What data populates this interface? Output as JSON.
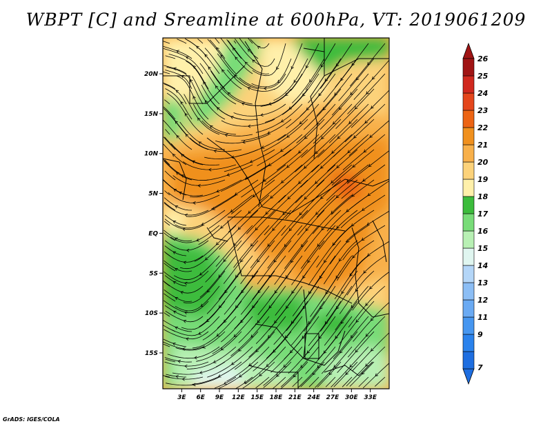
{
  "title": "WBPT [C] and Sreamline at 600hPa, VT: 2019061209",
  "credit": "GrADS: IGES/COLA",
  "map": {
    "lon_range": [
      0,
      36
    ],
    "lat_range": [
      -19.5,
      24.5
    ],
    "lat_ticks": [
      {
        "value": 20,
        "label": "20N"
      },
      {
        "value": 15,
        "label": "15N"
      },
      {
        "value": 10,
        "label": "10N"
      },
      {
        "value": 5,
        "label": "5N"
      },
      {
        "value": 0,
        "label": "EQ"
      },
      {
        "value": -5,
        "label": "5S"
      },
      {
        "value": -10,
        "label": "10S"
      },
      {
        "value": -15,
        "label": "15S"
      }
    ],
    "lon_ticks": [
      {
        "value": 3,
        "label": "3E"
      },
      {
        "value": 6,
        "label": "6E"
      },
      {
        "value": 9,
        "label": "9E"
      },
      {
        "value": 12,
        "label": "12E"
      },
      {
        "value": 15,
        "label": "15E"
      },
      {
        "value": 18,
        "label": "18E"
      },
      {
        "value": 21,
        "label": "21E"
      },
      {
        "value": 24,
        "label": "24E"
      },
      {
        "value": 27,
        "label": "27E"
      },
      {
        "value": 30,
        "label": "30E"
      },
      {
        "value": 33,
        "label": "33E"
      }
    ]
  },
  "colorbar": {
    "levels": [
      {
        "label": "7",
        "color": "#1e6ee0"
      },
      {
        "label": "9",
        "color": "#2a82ec"
      },
      {
        "label": "11",
        "color": "#4696f0"
      },
      {
        "label": "12",
        "color": "#6aaaf3"
      },
      {
        "label": "13",
        "color": "#8cbef5"
      },
      {
        "label": "14",
        "color": "#b4d6f8"
      },
      {
        "label": "15",
        "color": "#e0f6f0"
      },
      {
        "label": "16",
        "color": "#b8f0b4"
      },
      {
        "label": "17",
        "color": "#78dc78"
      },
      {
        "label": "18",
        "color": "#3cbc3c"
      },
      {
        "label": "19",
        "color": "#fff0aa"
      },
      {
        "label": "20",
        "color": "#fcd27a"
      },
      {
        "label": "21",
        "color": "#f8b04a"
      },
      {
        "label": "22",
        "color": "#f0901e"
      },
      {
        "label": "23",
        "color": "#ec6414"
      },
      {
        "label": "24",
        "color": "#e4461c"
      },
      {
        "label": "25",
        "color": "#d0281e"
      },
      {
        "label": "26",
        "color": "#a01414"
      }
    ],
    "top_color": "#a01414",
    "bottom_color": "#1e6ee0"
  }
}
